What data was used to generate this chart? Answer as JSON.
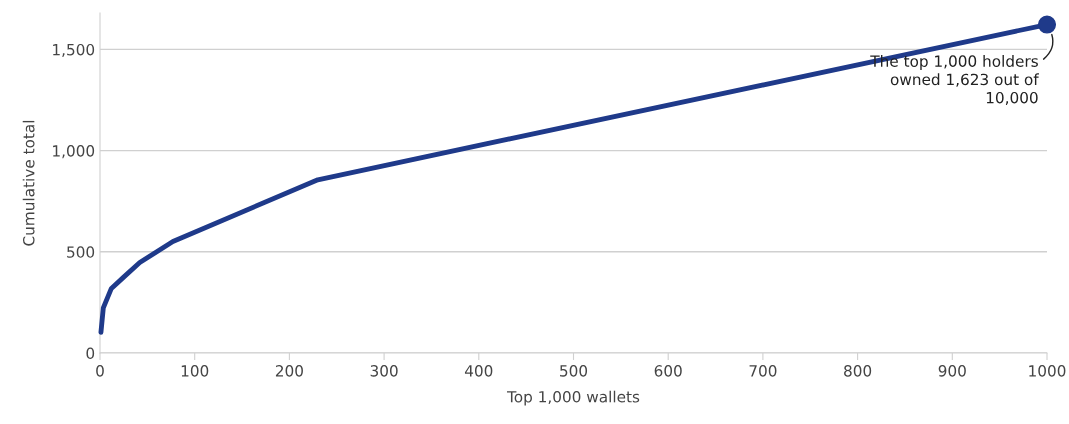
{
  "chart_data": {
    "type": "line",
    "xlabel": "Top 1,000 wallets",
    "ylabel": "Cumulative total",
    "series": [
      {
        "color": "#1f3a8a",
        "x": [
          1,
          3.5,
          12,
          25,
          42,
          77,
          230,
          1000
        ],
        "values": [
          102,
          223,
          319,
          375,
          447,
          551,
          856,
          1623
        ]
      }
    ],
    "xlim": [
      0,
      1000
    ],
    "ylim": [
      0,
      1680
    ],
    "xticks": [
      0,
      100,
      200,
      300,
      400,
      500,
      600,
      700,
      800,
      900,
      1000
    ],
    "yticks": [
      0,
      {
        "value": 500,
        "label": "500"
      },
      {
        "value": 1000,
        "label": "1,000"
      },
      {
        "value": 1500,
        "label": "1,500"
      }
    ],
    "grid": "y",
    "marker": "none",
    "line_style": "solid",
    "annotations": [
      {
        "text": "The top 1,000 holders\nowned 1,623 out of\n10,000",
        "x": 1000,
        "y": 1623
      }
    ]
  }
}
